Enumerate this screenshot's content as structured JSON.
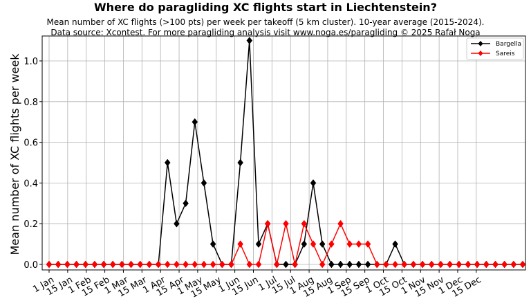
{
  "chart_data": {
    "type": "line",
    "title": "Where do paragliding XC flights start in Liechtenstein?",
    "subtitle_lines": [
      "Mean number of XC flights (>100 pts) per week per takeoff (5 km cluster). 10-year average (2015-2024).",
      "Data source: Xcontest. For more paragliding analysis visit www.noga.es/paragliding © 2025 Rafał Noga"
    ],
    "xlabel": "",
    "ylabel": "Mean number of XC flights per week",
    "ylim": [
      -0.02,
      1.12
    ],
    "yticks": [
      0.0,
      0.2,
      0.4,
      0.6,
      0.8,
      1.0
    ],
    "ytick_labels": [
      "0.0",
      "0.2",
      "0.4",
      "0.6",
      "0.8",
      "1.0"
    ],
    "xticks": [
      "1 Jan",
      "15 Jan",
      "1 Feb",
      "15 Feb",
      "1 Mar",
      "15 Mar",
      "1 Apr",
      "15 Apr",
      "1 May",
      "15 May",
      "1 Jun",
      "15 Jun",
      "1 Jul",
      "15 Jul",
      "1 Aug",
      "15 Aug",
      "1 Sep",
      "15 Sep",
      "1 Oct",
      "15 Oct",
      "1 Nov",
      "15 Nov",
      "1 Dec",
      "15 Dec"
    ],
    "grid": true,
    "legend_position": "top-right",
    "series": [
      {
        "name": "Bargella",
        "color": "#000000",
        "marker": "diamond",
        "values": [
          0,
          0,
          0,
          0,
          0,
          0,
          0,
          0,
          0,
          0,
          0,
          0,
          0,
          0.5,
          0.2,
          0.3,
          0.7,
          0.4,
          0.1,
          0,
          0,
          0.5,
          1.1,
          0.1,
          0.2,
          0,
          0,
          0,
          0.1,
          0.4,
          0.1,
          0,
          0,
          0,
          0,
          0,
          0,
          0,
          0.1,
          0,
          0,
          0,
          0,
          0,
          0,
          0,
          0,
          0,
          0,
          0,
          0,
          0,
          0
        ]
      },
      {
        "name": "Sareis",
        "color": "#ff0000",
        "marker": "diamond",
        "values": [
          0,
          0,
          0,
          0,
          0,
          0,
          0,
          0,
          0,
          0,
          0,
          0,
          0,
          0,
          0,
          0,
          0,
          0,
          0,
          0,
          0,
          0.1,
          0,
          0,
          0.2,
          0,
          0.2,
          0,
          0.2,
          0.1,
          0,
          0.1,
          0.2,
          0.1,
          0.1,
          0.1,
          0,
          0,
          0,
          0,
          0,
          0,
          0,
          0,
          0,
          0,
          0,
          0,
          0,
          0,
          0,
          0,
          0
        ]
      }
    ]
  }
}
